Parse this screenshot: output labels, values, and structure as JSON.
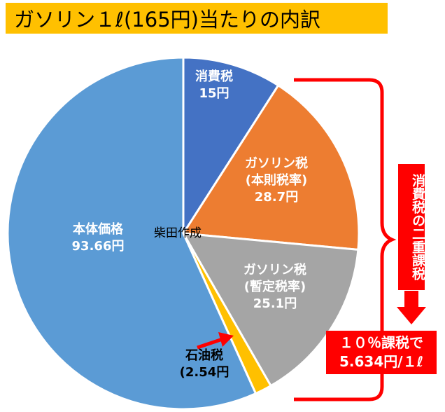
{
  "title": "ガソリン１ℓ(165円)当たりの内訳",
  "author_label": "柴田作成",
  "chart_data": {
    "type": "pie",
    "total": 165,
    "unit": "円",
    "slices": [
      {
        "label_line1": "消費税",
        "label_line2": "15円",
        "label_line3": "",
        "value": 15,
        "color": "#4472c4",
        "text_color": "#ffffff"
      },
      {
        "label_line1": "ガソリン税",
        "label_line2": "(本則税率)",
        "label_line3": "28.7円",
        "value": 28.7,
        "color": "#ed7d31",
        "text_color": "#ffffff"
      },
      {
        "label_line1": "ガソリン税",
        "label_line2": "(暫定税率)",
        "label_line3": "25.1円",
        "value": 25.1,
        "color": "#a5a5a5",
        "text_color": "#ffffff"
      },
      {
        "label_line1": "石油税",
        "label_line2": "(2.54円",
        "label_line3": "",
        "value": 2.54,
        "color": "#ffc000",
        "text_color": "#000000"
      },
      {
        "label_line1": "本体価格",
        "label_line2": "93.66円",
        "label_line3": "",
        "value": 93.66,
        "color": "#5b9bd5",
        "text_color": "#ffffff"
      }
    ],
    "start_angle_deg": 0,
    "direction": "clockwise"
  },
  "annotation": {
    "vertical_label": "消費税の二重課税",
    "note_line1": "１０％課税で",
    "note_line2": "5.634円/１ℓ",
    "accent_color": "#ff0000"
  }
}
